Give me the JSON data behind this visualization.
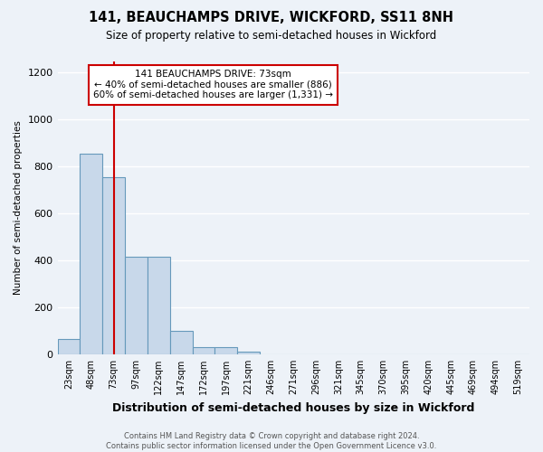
{
  "title": "141, BEAUCHAMPS DRIVE, WICKFORD, SS11 8NH",
  "subtitle": "Size of property relative to semi-detached houses in Wickford",
  "xlabel": "Distribution of semi-detached houses by size in Wickford",
  "ylabel": "Number of semi-detached properties",
  "footer_line1": "Contains HM Land Registry data © Crown copyright and database right 2024.",
  "footer_line2": "Contains public sector information licensed under the Open Government Licence v3.0.",
  "annotation_title": "141 BEAUCHAMPS DRIVE: 73sqm",
  "annotation_line1": "← 40% of semi-detached houses are smaller (886)",
  "annotation_line2": "60% of semi-detached houses are larger (1,331) →",
  "categories": [
    "23sqm",
    "48sqm",
    "73sqm",
    "97sqm",
    "122sqm",
    "147sqm",
    "172sqm",
    "197sqm",
    "221sqm",
    "246sqm",
    "271sqm",
    "296sqm",
    "321sqm",
    "345sqm",
    "370sqm",
    "395sqm",
    "420sqm",
    "445sqm",
    "469sqm",
    "494sqm",
    "519sqm"
  ],
  "values": [
    65,
    855,
    755,
    415,
    415,
    100,
    30,
    30,
    12,
    0,
    0,
    0,
    0,
    0,
    0,
    0,
    0,
    0,
    0,
    0,
    0
  ],
  "bar_color": "#c8d8ea",
  "bar_edge_color": "#6699bb",
  "highlight_index": 2,
  "highlight_line_color": "#cc0000",
  "ylim": [
    0,
    1250
  ],
  "yticks": [
    0,
    200,
    400,
    600,
    800,
    1000,
    1200
  ],
  "background_color": "#edf2f8",
  "grid_color": "#ffffff",
  "annotation_box_facecolor": "#ffffff",
  "annotation_box_edgecolor": "#cc0000"
}
